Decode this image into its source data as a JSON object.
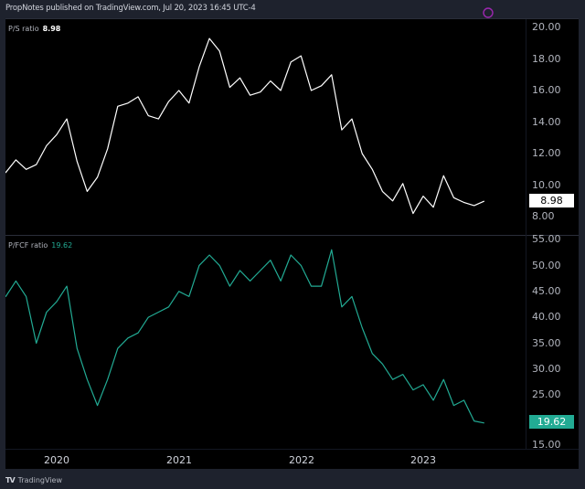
{
  "header": {
    "title": "PropNotes published on TradingView.com, Jul 20, 2023 16:45 UTC-4"
  },
  "footer": {
    "logo_icon": "tradingview-logo-icon",
    "brand": "TradingView"
  },
  "colors": {
    "background": "#000000",
    "frame": "#1e222d",
    "ps_line": "#ffffff",
    "pfcf_line": "#22ab94",
    "ps_badge_bg": "#ffffff",
    "ps_badge_fg": "#000000",
    "pfcf_badge_bg": "#22ab94",
    "pfcf_badge_fg": "#ffffff"
  },
  "panes": [
    {
      "legend_label": "P/S ratio",
      "legend_value": "8.98",
      "axis_ticks": [
        "20.00",
        "18.00",
        "16.00",
        "14.00",
        "12.00",
        "10.00",
        "8.00"
      ],
      "last_value_badge": "8.98"
    },
    {
      "legend_label": "P/FCF ratio",
      "legend_value": "19.62",
      "axis_ticks": [
        "55.00",
        "50.00",
        "45.00",
        "40.00",
        "35.00",
        "30.00",
        "25.00",
        "15.00"
      ],
      "last_value_badge": "19.62"
    }
  ],
  "time_axis": {
    "labels": [
      "2020",
      "2021",
      "2022",
      "2023"
    ]
  },
  "chart_data": [
    {
      "type": "line",
      "title": "P/S ratio",
      "ylabel": "",
      "xlabel": "",
      "ylim": [
        7.5,
        20.5
      ],
      "grid": false,
      "legend_position": "top-left",
      "last_value": 8.98,
      "x_ticks": [
        "2020",
        "2021",
        "2022",
        "2023"
      ],
      "x": [
        "2019-07",
        "2019-08",
        "2019-09",
        "2019-10",
        "2019-11",
        "2019-12",
        "2020-01",
        "2020-02",
        "2020-03",
        "2020-04",
        "2020-05",
        "2020-06",
        "2020-07",
        "2020-08",
        "2020-09",
        "2020-10",
        "2020-11",
        "2020-12",
        "2021-01",
        "2021-02",
        "2021-03",
        "2021-04",
        "2021-05",
        "2021-06",
        "2021-07",
        "2021-08",
        "2021-09",
        "2021-10",
        "2021-11",
        "2021-12",
        "2022-01",
        "2022-02",
        "2022-03",
        "2022-04",
        "2022-05",
        "2022-06",
        "2022-07",
        "2022-08",
        "2022-09",
        "2022-10",
        "2022-11",
        "2022-12",
        "2023-01",
        "2023-02",
        "2023-03",
        "2023-04",
        "2023-05",
        "2023-06",
        "2023-07"
      ],
      "values": [
        11.2,
        10.8,
        11.6,
        11.0,
        11.3,
        12.5,
        13.2,
        14.2,
        11.5,
        9.6,
        10.5,
        12.3,
        15.0,
        15.2,
        15.6,
        14.4,
        14.2,
        15.3,
        16.0,
        15.2,
        17.5,
        19.3,
        18.5,
        16.2,
        16.8,
        15.7,
        15.9,
        16.6,
        16.0,
        17.8,
        18.2,
        16.0,
        16.3,
        17.0,
        13.5,
        14.2,
        12.0,
        11.0,
        9.6,
        9.0,
        10.1,
        8.2,
        9.3,
        8.6,
        10.6,
        9.2,
        8.9,
        8.7,
        8.98
      ],
      "color": "#ffffff"
    },
    {
      "type": "line",
      "title": "P/FCF ratio",
      "ylabel": "",
      "xlabel": "",
      "ylim": [
        15,
        55
      ],
      "grid": false,
      "legend_position": "top-left",
      "last_value": 19.62,
      "x_ticks": [
        "2020",
        "2021",
        "2022",
        "2023"
      ],
      "x": [
        "2019-07",
        "2019-08",
        "2019-09",
        "2019-10",
        "2019-11",
        "2019-12",
        "2020-01",
        "2020-02",
        "2020-03",
        "2020-04",
        "2020-05",
        "2020-06",
        "2020-07",
        "2020-08",
        "2020-09",
        "2020-10",
        "2020-11",
        "2020-12",
        "2021-01",
        "2021-02",
        "2021-03",
        "2021-04",
        "2021-05",
        "2021-06",
        "2021-07",
        "2021-08",
        "2021-09",
        "2021-10",
        "2021-11",
        "2021-12",
        "2022-01",
        "2022-02",
        "2022-03",
        "2022-04",
        "2022-05",
        "2022-06",
        "2022-07",
        "2022-08",
        "2022-09",
        "2022-10",
        "2022-11",
        "2022-12",
        "2023-01",
        "2023-02",
        "2023-03",
        "2023-04",
        "2023-05",
        "2023-06",
        "2023-07"
      ],
      "values": [
        46,
        44,
        47,
        44,
        35,
        41,
        43,
        46,
        34,
        28,
        23,
        28,
        34,
        36,
        37,
        40,
        41,
        42,
        45,
        44,
        50,
        52,
        50,
        46,
        49,
        47,
        49,
        51,
        47,
        52,
        50,
        46,
        46,
        53,
        42,
        44,
        38,
        33,
        31,
        28,
        29,
        26,
        27,
        24,
        28,
        23,
        24,
        20,
        19.62
      ],
      "color": "#22ab94"
    }
  ]
}
